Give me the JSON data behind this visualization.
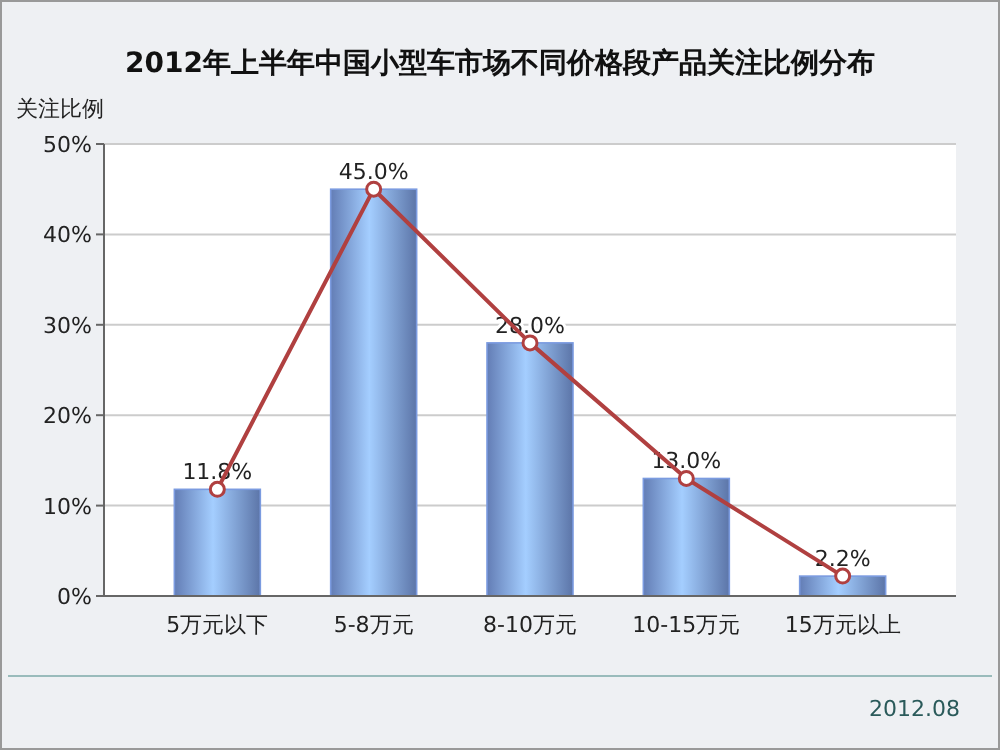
{
  "chart_data": {
    "type": "bar",
    "title": "2012年上半年中国小型车市场不同价格段产品关注比例分布",
    "ylabel": "关注比例",
    "categories": [
      "5万元以下",
      "5-8万元",
      "8-10万元",
      "10-15万元",
      "15万元以上"
    ],
    "series": [
      {
        "color": "#7b9be0",
        "values": [
          11.8,
          45.0,
          28.0,
          13.0,
          2.2
        ],
        "value_labels": [
          "11.8%",
          "45.0%",
          "28.0%",
          "13.0%",
          "2.2%"
        ]
      },
      {
        "type": "line",
        "color": "#b04040",
        "values": [
          11.8,
          45.0,
          28.0,
          13.0,
          2.2
        ],
        "marker": "circle"
      }
    ],
    "ylim": [
      0,
      50
    ],
    "yticks": [
      {
        "value": 0,
        "label": "0%"
      },
      {
        "value": 10,
        "label": "10%"
      },
      {
        "value": 20,
        "label": "20%"
      },
      {
        "value": 30,
        "label": "30%"
      },
      {
        "value": 40,
        "label": "40%"
      },
      {
        "value": 50,
        "label": "50%"
      }
    ],
    "grid": "y",
    "annotations": [
      "2012.08"
    ]
  }
}
